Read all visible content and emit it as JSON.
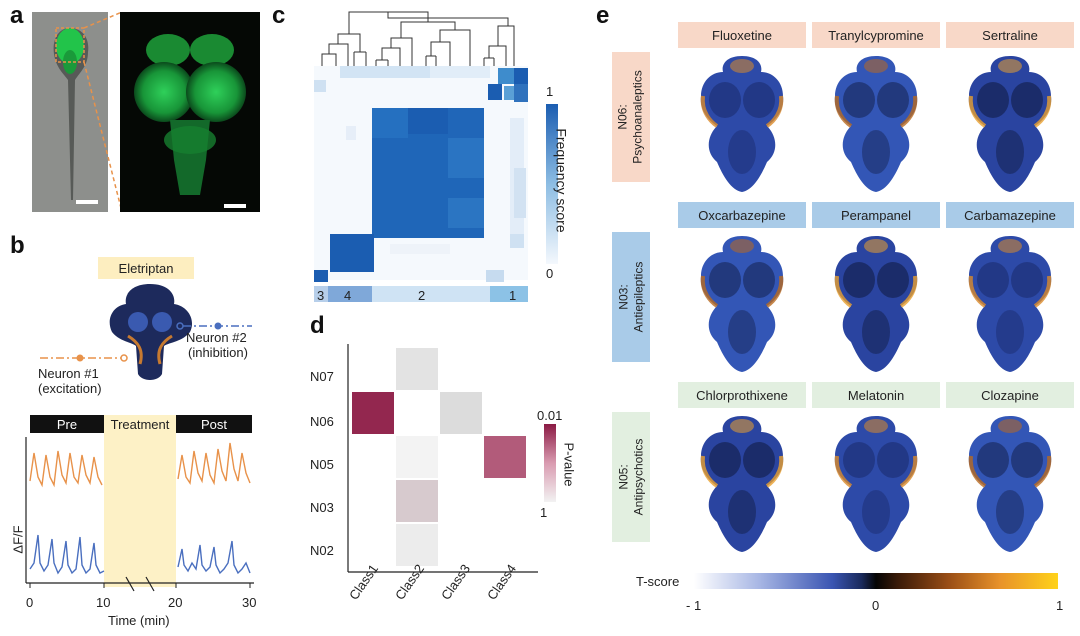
{
  "panel_labels": {
    "a": "a",
    "b": "b",
    "c": "c",
    "d": "d",
    "e": "e"
  },
  "panel_b": {
    "drug_label": "Eletriptan",
    "neuron1": "Neuron #1",
    "neuron1_type": "(excitation)",
    "neuron2": "Neuron #2",
    "neuron2_type": "(inhibition)",
    "phases": [
      "Pre",
      "Treatment",
      "Post"
    ],
    "ylabel": "ΔF/F",
    "xlabel": "Time (min)",
    "xticks": [
      "0",
      "10",
      "20",
      "30"
    ],
    "colors": {
      "neuron1": "#e8924a",
      "neuron2": "#4a6fbf",
      "treatment": "#fdf1c6"
    }
  },
  "panel_c": {
    "colorbar_label": "Frequency score",
    "colorbar_max": "1",
    "colorbar_min": "0",
    "cluster_labels": [
      "3",
      "4",
      "2",
      "1"
    ],
    "colors": {
      "high": "#1b5db1",
      "low": "#f4f8fd"
    }
  },
  "panel_d": {
    "chart_data": {
      "type": "heatmap",
      "rows": [
        "N07",
        "N06",
        "N05",
        "N03",
        "N02"
      ],
      "columns": [
        "Class1",
        "Class2",
        "Class3",
        "Class4"
      ],
      "colorbar_label": "P-value",
      "colorbar_max": "0.01",
      "colorbar_min": "1",
      "cells": [
        {
          "row": "N07",
          "col": "Class2",
          "level": 0.15
        },
        {
          "row": "N06",
          "col": "Class1",
          "level": 0.95
        },
        {
          "row": "N06",
          "col": "Class3",
          "level": 0.2
        },
        {
          "row": "N05",
          "col": "Class2",
          "level": 0.02
        },
        {
          "row": "N05",
          "col": "Class4",
          "level": 0.75
        },
        {
          "row": "N03",
          "col": "Class2",
          "level": 0.3
        },
        {
          "row": "N02",
          "col": "Class2",
          "level": 0.08
        }
      ]
    },
    "colors": {
      "high": "#8b1a44",
      "low": "#d6d6d6"
    }
  },
  "panel_e": {
    "groups": [
      {
        "label": "N06:\nPsychoanaleptics",
        "color": "#f8d8c8",
        "drugs": [
          "Fluoxetine",
          "Tranylcypromine",
          "Sertraline"
        ]
      },
      {
        "label": "N03:\nAntiepileptics",
        "color": "#a9cbe8",
        "drugs": [
          "Oxcarbazepine",
          "Perampanel",
          "Carbamazepine"
        ]
      },
      {
        "label": "N05:\nAntipsychotics",
        "color": "#e2efe0",
        "drugs": [
          "Chlorprothixene",
          "Melatonin",
          "Clozapine"
        ]
      }
    ],
    "colorbar_title": "T-score",
    "colorbar_ticks": [
      "- 1",
      "0",
      "1"
    ]
  }
}
